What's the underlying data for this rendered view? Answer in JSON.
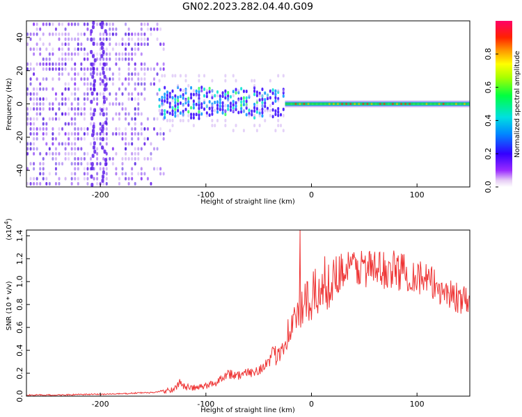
{
  "title": "GN02.2023.282.04.40.G09",
  "chart_data": [
    {
      "type": "heatmap",
      "xlabel": "Height of straight line (km)",
      "ylabel": "Frequency (Hz)",
      "xlim": [
        -270,
        150
      ],
      "ylim": [
        -50,
        50
      ],
      "xticks": [
        -200,
        -100,
        0,
        100
      ],
      "yticks": [
        -40,
        -20,
        0,
        20,
        40
      ],
      "colorbar": {
        "label": "Normalized spectral amplitude",
        "range": [
          0.0,
          1.0
        ],
        "ticks": [
          0.0,
          0.2,
          0.4,
          0.6,
          0.8
        ],
        "colormap": "rainbow (white-purple-blue-cyan-green-yellow-red-magenta)"
      }
    },
    {
      "type": "line",
      "xlabel": "Height of straight line (km)",
      "ylabel": "SNR (10 * v/v)",
      "y_multiplier": "(x10^4)",
      "xlim": [
        -270,
        150
      ],
      "ylim": [
        0,
        1.45
      ],
      "xticks": [
        -200,
        -100,
        0,
        100
      ],
      "yticks": [
        0.0,
        0.2,
        0.4,
        0.6,
        0.8,
        1.0,
        1.2,
        1.4
      ],
      "series": [
        {
          "color": "#ee3333",
          "x": [
            -270,
            -240,
            -210,
            -180,
            -160,
            -150,
            -140,
            -130,
            -125,
            -120,
            -110,
            -100,
            -90,
            -80,
            -70,
            -60,
            -50,
            -40,
            -30,
            -20,
            -10,
            0,
            10,
            20,
            30,
            40,
            50,
            60,
            70,
            80,
            90,
            100,
            110,
            120,
            130,
            140,
            150
          ],
          "y": [
            0.01,
            0.01,
            0.015,
            0.02,
            0.03,
            0.03,
            0.05,
            0.06,
            0.12,
            0.08,
            0.07,
            0.09,
            0.12,
            0.2,
            0.18,
            0.2,
            0.23,
            0.3,
            0.4,
            0.6,
            0.75,
            0.85,
            0.95,
            1.05,
            1.1,
            1.12,
            1.13,
            1.1,
            1.1,
            1.1,
            1.08,
            1.05,
            1.0,
            0.95,
            0.9,
            0.85,
            0.8
          ]
        }
      ]
    }
  ]
}
